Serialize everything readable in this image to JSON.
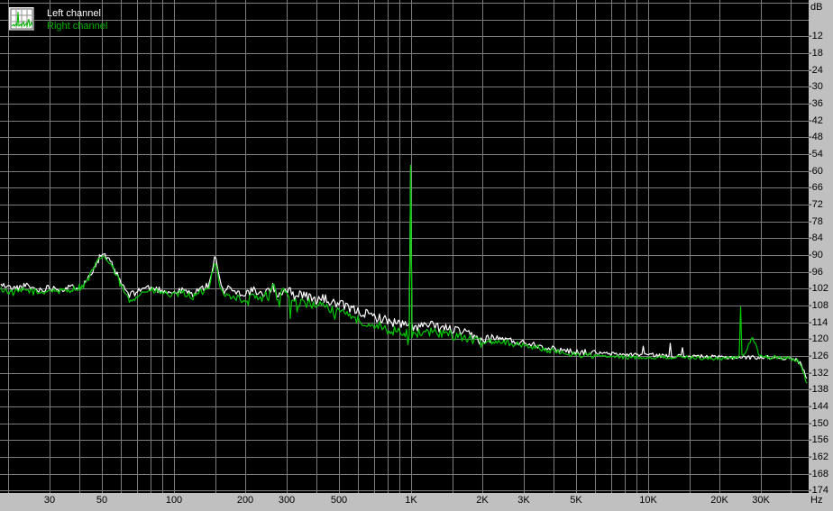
{
  "window": {
    "background": "#c0c0c0"
  },
  "legend": {
    "icon": "spectrum-thumbnail-icon",
    "items": [
      {
        "label": "Left channel",
        "color": "#ffffff"
      },
      {
        "label": "Right channel",
        "color": "#00b400"
      }
    ]
  },
  "axes": {
    "y_unit": "dB",
    "x_unit": "Hz",
    "y_labels": [
      "-12",
      "-18",
      "-24",
      "-30",
      "-36",
      "-42",
      "-48",
      "-54",
      "-60",
      "-66",
      "-72",
      "-78",
      "-84",
      "-90",
      "-96",
      "-102",
      "-108",
      "-114",
      "-120",
      "-126",
      "-132",
      "-138",
      "-144",
      "-150",
      "-156",
      "-162",
      "-168",
      "-174"
    ],
    "x_labels": [
      {
        "f": 30,
        "text": "30"
      },
      {
        "f": 50,
        "text": "50"
      },
      {
        "f": 100,
        "text": "100"
      },
      {
        "f": 200,
        "text": "200"
      },
      {
        "f": 300,
        "text": "300"
      },
      {
        "f": 500,
        "text": "500"
      },
      {
        "f": 1000,
        "text": "1K"
      },
      {
        "f": 2000,
        "text": "2K"
      },
      {
        "f": 3000,
        "text": "3K"
      },
      {
        "f": 5000,
        "text": "5K"
      },
      {
        "f": 10000,
        "text": "10K"
      },
      {
        "f": 20000,
        "text": "20K"
      },
      {
        "f": 30000,
        "text": "30K"
      }
    ]
  },
  "colors": {
    "plot_bg": "#000000",
    "grid": "#7d7d7d",
    "label_text": "#000000",
    "left_trace": "#ffffff",
    "right_trace": "#00c800"
  },
  "chart_data": {
    "type": "line",
    "title": "",
    "xlabel": "Hz",
    "ylabel": "dB",
    "x_axis": {
      "scale": "log",
      "unit": "Hz",
      "min": 18.5,
      "max": 48000,
      "gridlines_hz": [
        20,
        30,
        40,
        50,
        60,
        70,
        80,
        90,
        100,
        150,
        200,
        300,
        400,
        500,
        600,
        700,
        800,
        900,
        1000,
        1500,
        2000,
        3000,
        4000,
        5000,
        6000,
        7000,
        8000,
        9000,
        10000,
        15000,
        20000,
        30000,
        40000
      ]
    },
    "y_axis": {
      "unit": "dB",
      "min": -174,
      "max": 0,
      "grid_step": 6
    },
    "legend_position": "top-left",
    "series": [
      {
        "name": "Left channel",
        "color": "#ffffff",
        "seed": 11,
        "noise_bands": [
          [
            200,
            1.2
          ],
          [
            2200,
            1.7
          ],
          [
            6000,
            1.1
          ],
          [
            48000,
            0.7
          ]
        ],
        "spikes": [
          [
            1000,
            -58.5
          ],
          [
            9600,
            -122.5
          ],
          [
            12500,
            -121.5
          ],
          [
            14000,
            -123
          ]
        ],
        "envelope_db": [
          [
            18.5,
            -100.5
          ],
          [
            21,
            -102
          ],
          [
            24,
            -101
          ],
          [
            27,
            -102.5
          ],
          [
            30,
            -101.5
          ],
          [
            34,
            -102
          ],
          [
            38,
            -101.5
          ],
          [
            42,
            -100.5
          ],
          [
            46,
            -94.5
          ],
          [
            50,
            -89.3
          ],
          [
            55,
            -93.5
          ],
          [
            60,
            -100
          ],
          [
            65,
            -104.5
          ],
          [
            70,
            -103
          ],
          [
            76,
            -101.5
          ],
          [
            82,
            -102
          ],
          [
            90,
            -102.5
          ],
          [
            100,
            -103.5
          ],
          [
            110,
            -102.5
          ],
          [
            120,
            -104
          ],
          [
            130,
            -102
          ],
          [
            140,
            -101
          ],
          [
            146,
            -95
          ],
          [
            150,
            -90.3
          ],
          [
            155,
            -97.5
          ],
          [
            162,
            -103.5
          ],
          [
            170,
            -100.8
          ],
          [
            180,
            -103
          ],
          [
            190,
            -103.5
          ],
          [
            200,
            -104
          ],
          [
            215,
            -102.5
          ],
          [
            230,
            -104.5
          ],
          [
            245,
            -103
          ],
          [
            262,
            -101.8
          ],
          [
            275,
            -104
          ],
          [
            290,
            -102.8
          ],
          [
            300,
            -101.8
          ],
          [
            320,
            -104.5
          ],
          [
            345,
            -103.5
          ],
          [
            370,
            -105
          ],
          [
            400,
            -106
          ],
          [
            430,
            -105.5
          ],
          [
            465,
            -107
          ],
          [
            500,
            -107.5
          ],
          [
            550,
            -109
          ],
          [
            600,
            -110
          ],
          [
            650,
            -111
          ],
          [
            700,
            -112
          ],
          [
            750,
            -112.5
          ],
          [
            800,
            -113.5
          ],
          [
            850,
            -114
          ],
          [
            900,
            -114.5
          ],
          [
            950,
            -115
          ],
          [
            1000,
            -115.5
          ],
          [
            1100,
            -115.5
          ],
          [
            1200,
            -115
          ],
          [
            1350,
            -116
          ],
          [
            1500,
            -116.5
          ],
          [
            1700,
            -118
          ],
          [
            2000,
            -120.5
          ],
          [
            2200,
            -119.5
          ],
          [
            2500,
            -120
          ],
          [
            2800,
            -121
          ],
          [
            3200,
            -121.5
          ],
          [
            3600,
            -122.5
          ],
          [
            4000,
            -123.5
          ],
          [
            4500,
            -124
          ],
          [
            5000,
            -124.5
          ],
          [
            6000,
            -125
          ],
          [
            8000,
            -125.5
          ],
          [
            10000,
            -125.5
          ],
          [
            12000,
            -126
          ],
          [
            15000,
            -126
          ],
          [
            20000,
            -126.5
          ],
          [
            25000,
            -126.5
          ],
          [
            30000,
            -126.5
          ],
          [
            36000,
            -126.5
          ],
          [
            40000,
            -127
          ],
          [
            42500,
            -127.5
          ],
          [
            44500,
            -129
          ],
          [
            45800,
            -132
          ],
          [
            47000,
            -134.5
          ]
        ]
      },
      {
        "name": "Right channel",
        "color": "#00c800",
        "seed": 97,
        "noise_bands": [
          [
            200,
            1.2
          ],
          [
            2200,
            1.7
          ],
          [
            6000,
            1.1
          ],
          [
            48000,
            0.7
          ]
        ],
        "dips": {
          "fmin": 250,
          "fmax": 1100,
          "prob": 0.05,
          "min": 2.5,
          "max": 5.5
        },
        "spikes": [
          [
            1000,
            -58
          ],
          [
            24500,
            -108.5
          ]
        ],
        "envelope_db": [
          [
            18.5,
            -102
          ],
          [
            21,
            -103.5
          ],
          [
            24,
            -102.5
          ],
          [
            27,
            -103.5
          ],
          [
            30,
            -102.5
          ],
          [
            34,
            -103
          ],
          [
            38,
            -102
          ],
          [
            42,
            -101
          ],
          [
            46,
            -95
          ],
          [
            50,
            -90
          ],
          [
            55,
            -94
          ],
          [
            60,
            -101
          ],
          [
            65,
            -106.5
          ],
          [
            70,
            -104.5
          ],
          [
            76,
            -102.8
          ],
          [
            82,
            -102.8
          ],
          [
            90,
            -103.5
          ],
          [
            100,
            -104.5
          ],
          [
            110,
            -103.5
          ],
          [
            120,
            -105
          ],
          [
            130,
            -103.5
          ],
          [
            140,
            -102
          ],
          [
            146,
            -95.8
          ],
          [
            150,
            -91.5
          ],
          [
            155,
            -99
          ],
          [
            162,
            -104.5
          ],
          [
            170,
            -104.5
          ],
          [
            180,
            -105
          ],
          [
            190,
            -105.5
          ],
          [
            200,
            -107.5
          ],
          [
            215,
            -104.8
          ],
          [
            230,
            -106
          ],
          [
            245,
            -104.5
          ],
          [
            258,
            -103
          ],
          [
            265,
            -100.8
          ],
          [
            275,
            -106
          ],
          [
            290,
            -103.2
          ],
          [
            300,
            -102.2
          ],
          [
            310,
            -107
          ],
          [
            330,
            -106.5
          ],
          [
            350,
            -107.5
          ],
          [
            370,
            -107
          ],
          [
            400,
            -108.5
          ],
          [
            430,
            -108
          ],
          [
            465,
            -109.5
          ],
          [
            500,
            -110.5
          ],
          [
            550,
            -112
          ],
          [
            600,
            -113
          ],
          [
            650,
            -114
          ],
          [
            700,
            -115
          ],
          [
            750,
            -115.5
          ],
          [
            800,
            -116.5
          ],
          [
            850,
            -117
          ],
          [
            900,
            -117.5
          ],
          [
            950,
            -118
          ],
          [
            1000,
            -118
          ],
          [
            1100,
            -118
          ],
          [
            1200,
            -117.5
          ],
          [
            1350,
            -118
          ],
          [
            1500,
            -118.5
          ],
          [
            1700,
            -119.5
          ],
          [
            2000,
            -121.5
          ],
          [
            2200,
            -120.5
          ],
          [
            2500,
            -121
          ],
          [
            2800,
            -122
          ],
          [
            3200,
            -122.5
          ],
          [
            3600,
            -123.5
          ],
          [
            4000,
            -124.5
          ],
          [
            4500,
            -125
          ],
          [
            5000,
            -125.5
          ],
          [
            6000,
            -126
          ],
          [
            8000,
            -126.5
          ],
          [
            10000,
            -126.5
          ],
          [
            12000,
            -126.5
          ],
          [
            15000,
            -126.5
          ],
          [
            20000,
            -127
          ],
          [
            24000,
            -126.5
          ],
          [
            26000,
            -124.5
          ],
          [
            27500,
            -119.5
          ],
          [
            28500,
            -121.5
          ],
          [
            29500,
            -125.5
          ],
          [
            31000,
            -126.5
          ],
          [
            36000,
            -126.5
          ],
          [
            40000,
            -127
          ],
          [
            42500,
            -127.5
          ],
          [
            44500,
            -129.5
          ],
          [
            45800,
            -133
          ],
          [
            47000,
            -136
          ]
        ]
      }
    ]
  }
}
